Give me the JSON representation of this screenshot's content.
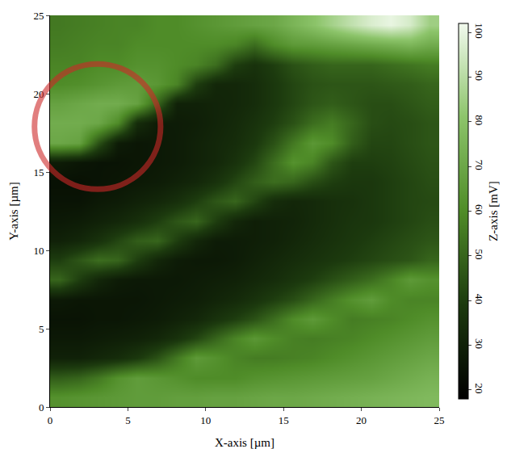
{
  "chart_data": {
    "type": "heatmap",
    "x_label": "X-axis [µm]",
    "y_label": "Y-axis [µm]",
    "x": [
      0.625,
      1.875,
      3.125,
      4.375,
      5.625,
      6.875,
      8.125,
      9.375,
      10.625,
      11.875,
      13.125,
      14.375,
      15.625,
      16.875,
      18.125,
      19.375,
      20.625,
      21.875,
      23.125,
      24.375
    ],
    "y": [
      0.625,
      1.875,
      3.125,
      4.375,
      5.625,
      6.875,
      8.125,
      9.375,
      10.625,
      11.875,
      13.125,
      14.375,
      15.625,
      16.875,
      18.125,
      19.375,
      20.625,
      21.875,
      23.125,
      24.375
    ],
    "z": [
      [
        62,
        63,
        64,
        65,
        66,
        66,
        67,
        67,
        68,
        68,
        69,
        70,
        70,
        71,
        72,
        73,
        74,
        75,
        76,
        77
      ],
      [
        48,
        50,
        55,
        62,
        66,
        64,
        62,
        60,
        60,
        60,
        62,
        63,
        64,
        65,
        66,
        67,
        68,
        70,
        72,
        74
      ],
      [
        30,
        30,
        32,
        34,
        38,
        45,
        55,
        65,
        62,
        58,
        56,
        56,
        57,
        58,
        60,
        62,
        64,
        66,
        68,
        70
      ],
      [
        27,
        27,
        28,
        29,
        30,
        32,
        36,
        42,
        50,
        58,
        64,
        60,
        57,
        56,
        57,
        58,
        60,
        62,
        64,
        66
      ],
      [
        25,
        25,
        26,
        26,
        27,
        28,
        30,
        32,
        36,
        40,
        45,
        52,
        60,
        65,
        60,
        56,
        57,
        58,
        60,
        62
      ],
      [
        27,
        26,
        26,
        26,
        26,
        27,
        28,
        29,
        31,
        33,
        36,
        40,
        44,
        50,
        56,
        62,
        66,
        60,
        58,
        58
      ],
      [
        50,
        40,
        32,
        28,
        27,
        27,
        27,
        28,
        29,
        30,
        32,
        34,
        37,
        40,
        44,
        48,
        52,
        58,
        65,
        62
      ],
      [
        40,
        46,
        52,
        50,
        40,
        32,
        28,
        27,
        27,
        28,
        30,
        32,
        34,
        36,
        38,
        40,
        42,
        44,
        46,
        50
      ],
      [
        30,
        32,
        36,
        42,
        48,
        50,
        40,
        32,
        28,
        28,
        29,
        30,
        32,
        34,
        36,
        38,
        40,
        42,
        44,
        46
      ],
      [
        27,
        28,
        30,
        32,
        35,
        40,
        46,
        50,
        40,
        32,
        29,
        30,
        31,
        33,
        35,
        37,
        38,
        40,
        42,
        44
      ],
      [
        25,
        25,
        27,
        28,
        30,
        32,
        35,
        40,
        46,
        50,
        42,
        34,
        32,
        33,
        35,
        36,
        38,
        40,
        42,
        43
      ],
      [
        24,
        24,
        25,
        26,
        27,
        28,
        30,
        32,
        36,
        42,
        48,
        52,
        50,
        44,
        40,
        38,
        38,
        40,
        42,
        44
      ],
      [
        28,
        26,
        25,
        25,
        26,
        27,
        28,
        30,
        32,
        36,
        42,
        52,
        62,
        58,
        46,
        40,
        40,
        41,
        43,
        45
      ],
      [
        70,
        68,
        45,
        28,
        26,
        27,
        28,
        30,
        32,
        34,
        38,
        45,
        55,
        64,
        60,
        48,
        42,
        42,
        44,
        46
      ],
      [
        72,
        72,
        70,
        60,
        34,
        28,
        28,
        29,
        31,
        33,
        36,
        40,
        45,
        52,
        56,
        50,
        44,
        43,
        44,
        46
      ],
      [
        68,
        70,
        72,
        72,
        68,
        50,
        30,
        30,
        31,
        32,
        34,
        38,
        42,
        46,
        48,
        46,
        44,
        44,
        46,
        48
      ],
      [
        60,
        61,
        63,
        65,
        66,
        64,
        58,
        40,
        32,
        32,
        34,
        38,
        42,
        45,
        46,
        46,
        46,
        47,
        48,
        50
      ],
      [
        58,
        58,
        60,
        60,
        62,
        62,
        60,
        58,
        52,
        40,
        36,
        40,
        45,
        48,
        50,
        50,
        50,
        52,
        54,
        56
      ],
      [
        56,
        57,
        58,
        58,
        60,
        60,
        60,
        60,
        60,
        58,
        52,
        60,
        65,
        66,
        68,
        70,
        72,
        74,
        76,
        72
      ],
      [
        55,
        56,
        57,
        58,
        58,
        60,
        60,
        62,
        64,
        66,
        68,
        70,
        75,
        80,
        86,
        92,
        97,
        100,
        96,
        85
      ]
    ],
    "xlim": [
      0,
      25
    ],
    "ylim": [
      0,
      25
    ],
    "xticks": [
      0,
      5,
      10,
      15,
      20,
      25
    ],
    "yticks": [
      0,
      5,
      10,
      15,
      20,
      25
    ],
    "colorbar_label": "Z-axis [mV]",
    "colorbar_range": [
      18,
      102
    ],
    "colorbar_ticks": [
      20,
      30,
      40,
      50,
      60,
      70,
      80,
      90,
      100
    ],
    "colors": [
      "#000000",
      "#1c3a0e",
      "#4f8c28",
      "#8cc46a",
      "#f2faee"
    ],
    "grid": false
  }
}
